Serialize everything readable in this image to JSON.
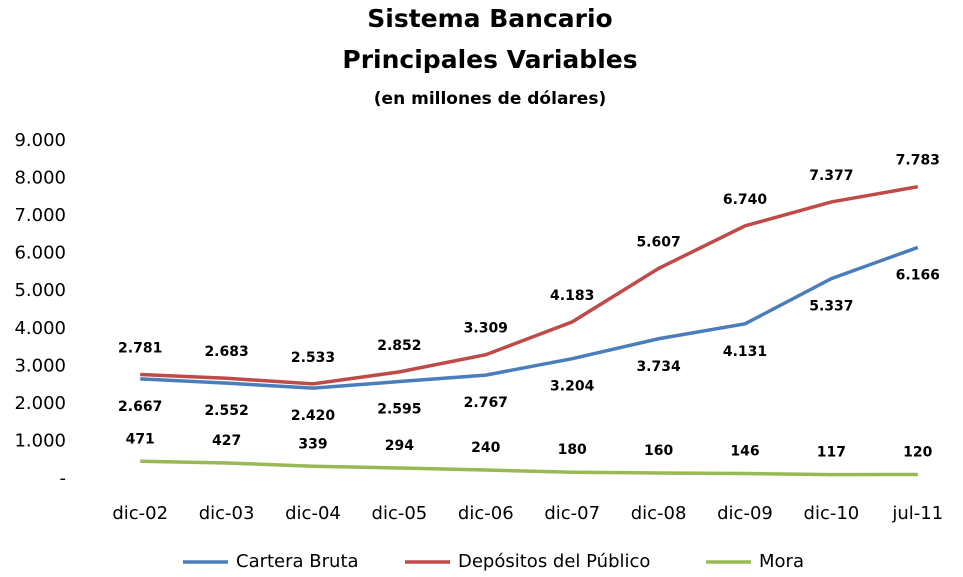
{
  "chart_data": {
    "type": "line",
    "title": [
      "Sistema Bancario",
      "Principales Variables"
    ],
    "subtitle": "(en millones de dólares)",
    "categories": [
      "dic-02",
      "dic-03",
      "dic-04",
      "dic-05",
      "dic-06",
      "dic-07",
      "dic-08",
      "dic-09",
      "dic-10",
      "jul-11"
    ],
    "series": [
      {
        "name": "Cartera Bruta",
        "color": "#4a7ebb",
        "values": [
          2667,
          2552,
          2420,
          2595,
          2767,
          3204,
          3734,
          4131,
          5337,
          6166
        ],
        "value_labels": [
          "2.667",
          "2.552",
          "2.420",
          "2.595",
          "2.767",
          "3.204",
          "3.734",
          "4.131",
          "5.337",
          "6.166"
        ]
      },
      {
        "name": "Depósitos del Público",
        "color": "#be4b48",
        "values": [
          2781,
          2683,
          2533,
          2852,
          3309,
          4183,
          5607,
          6740,
          7377,
          7783
        ],
        "value_labels": [
          "2.781",
          "2.683",
          "2.533",
          "2.852",
          "3.309",
          "4.183",
          "5.607",
          "6.740",
          "7.377",
          "7.783"
        ]
      },
      {
        "name": "Mora",
        "color": "#98b954",
        "values": [
          471,
          427,
          339,
          294,
          240,
          180,
          160,
          146,
          117,
          120
        ]
      }
    ],
    "ylim": [
      0,
      9000
    ],
    "yticks": [
      {
        "value": 0,
        "label": "-"
      },
      {
        "value": 1000,
        "label": "1.000"
      },
      {
        "value": 2000,
        "label": "2.000"
      },
      {
        "value": 3000,
        "label": "3.000"
      },
      {
        "value": 4000,
        "label": "4.000"
      },
      {
        "value": 5000,
        "label": "5.000"
      },
      {
        "value": 6000,
        "label": "6.000"
      },
      {
        "value": 7000,
        "label": "7.000"
      },
      {
        "value": 8000,
        "label": "8.000"
      },
      {
        "value": 9000,
        "label": "9.000"
      }
    ],
    "grid": false,
    "legend": "bottom"
  }
}
